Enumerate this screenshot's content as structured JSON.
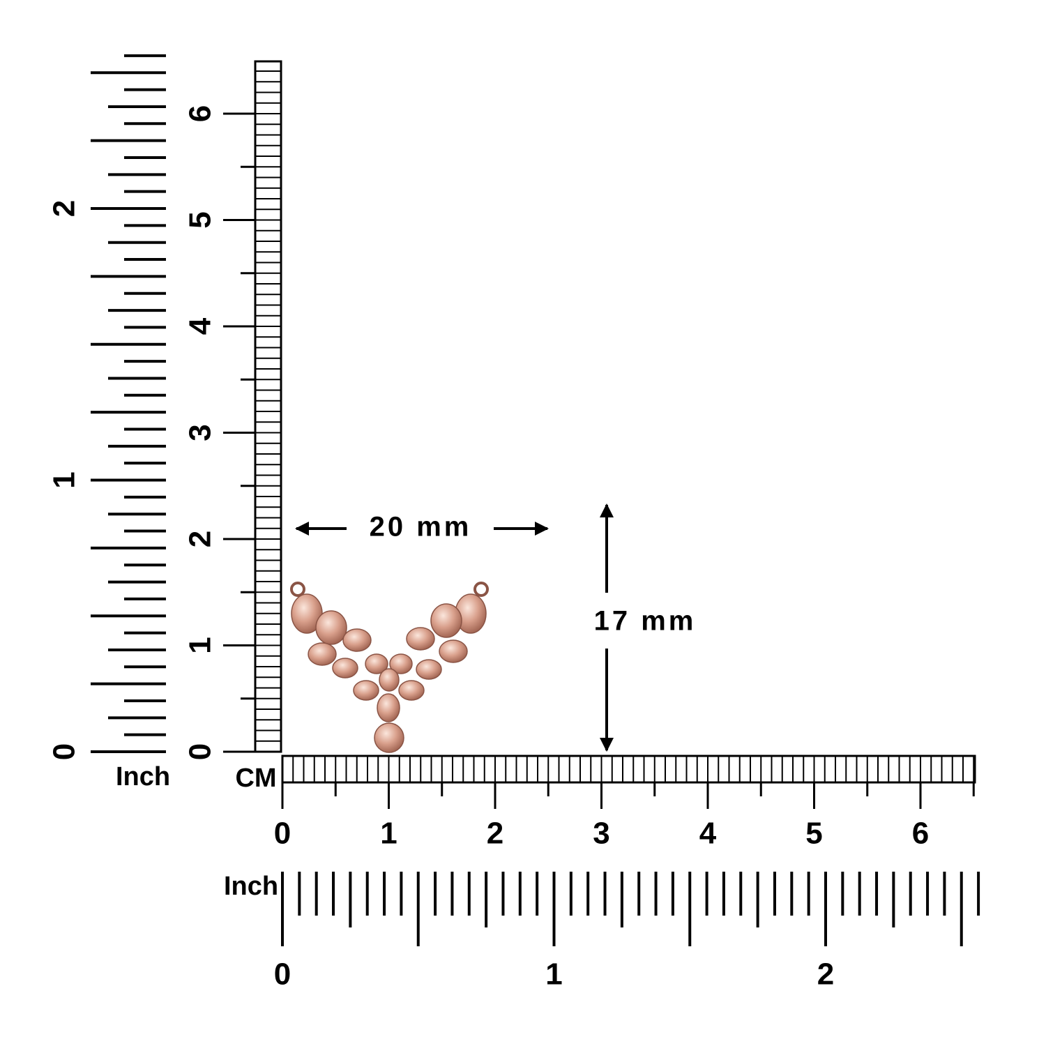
{
  "vertical_inch_ruler": {
    "unit": "Inch",
    "labels": [
      0,
      1,
      2
    ]
  },
  "vertical_cm_ruler": {
    "labels": [
      0,
      1,
      2,
      3,
      4,
      5,
      6
    ]
  },
  "horizontal_cm_ruler": {
    "unit": "CM",
    "labels": [
      0,
      1,
      2,
      3,
      4,
      5,
      6
    ]
  },
  "horizontal_inch_ruler": {
    "unit": "Inch",
    "labels": [
      0,
      1,
      2
    ]
  },
  "width_dimension": "20 mm",
  "height_dimension": "17 mm"
}
